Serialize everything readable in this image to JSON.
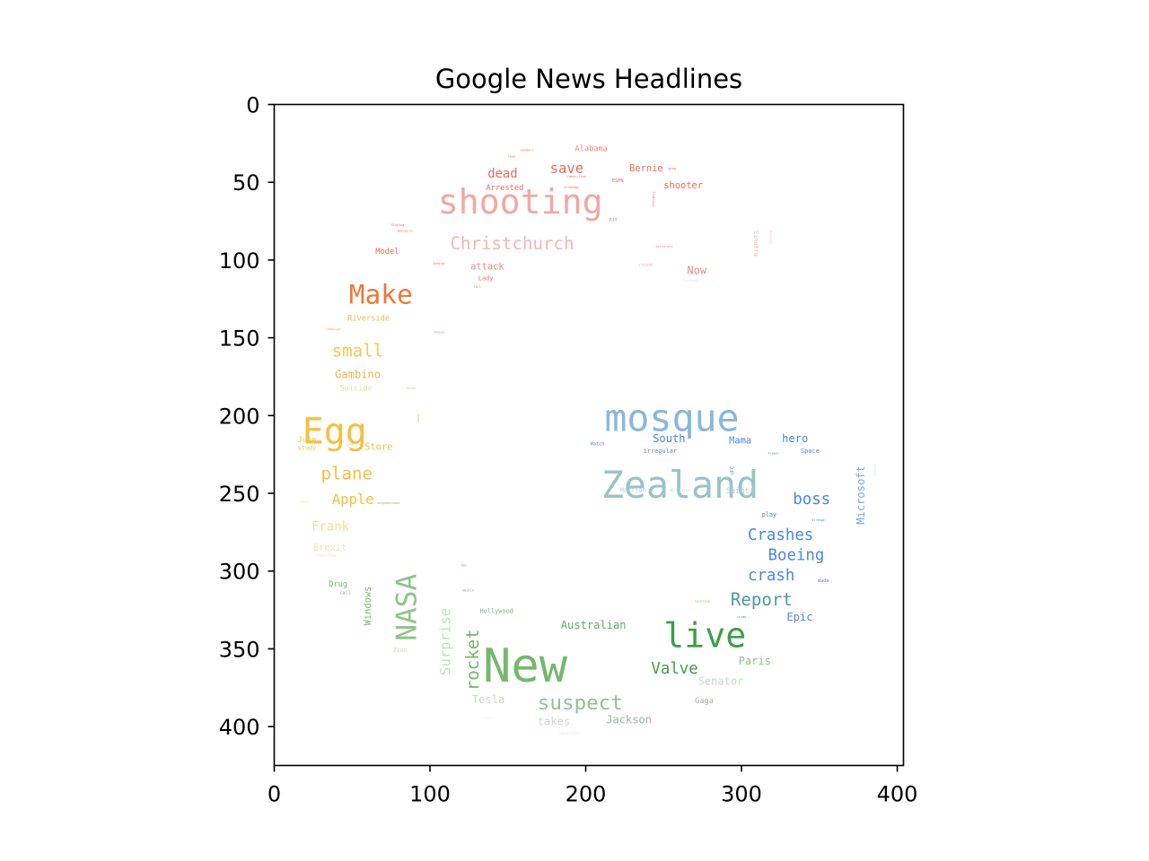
{
  "chart_data": {
    "type": "wordcloud",
    "title": "Google News Headlines",
    "xlabel": "",
    "ylabel": "",
    "x_range": [
      0,
      404
    ],
    "y_range": [
      0,
      425
    ],
    "y_inverted": true,
    "x_ticks": [
      0,
      100,
      200,
      300,
      400
    ],
    "y_ticks": [
      0,
      50,
      100,
      150,
      200,
      250,
      300,
      350,
      400
    ],
    "grid": false,
    "words": [
      {
        "text": "shooting",
        "x": 105,
        "y": 70,
        "size": 22,
        "color": "#f4a7a2",
        "rotate": 0
      },
      {
        "text": "Christchurch",
        "x": 113,
        "y": 93,
        "size": 11,
        "color": "#f7b4ae",
        "rotate": 0
      },
      {
        "text": "save",
        "x": 177,
        "y": 44,
        "size": 9,
        "color": "#ef6a5a",
        "rotate": 0
      },
      {
        "text": "dead",
        "x": 137,
        "y": 47,
        "size": 8,
        "color": "#ef6a5a",
        "rotate": 0
      },
      {
        "text": "Alabama",
        "x": 193,
        "y": 30,
        "size": 5,
        "color": "#f2857a",
        "rotate": 0
      },
      {
        "text": "Bernie",
        "x": 228,
        "y": 43,
        "size": 6,
        "color": "#ef6a5a",
        "rotate": 0
      },
      {
        "text": "shooter",
        "x": 250,
        "y": 54,
        "size": 6,
        "color": "#ef6a5a",
        "rotate": 0
      },
      {
        "text": "Arrested",
        "x": 136,
        "y": 55,
        "size": 5,
        "color": "#ef6a5a",
        "rotate": 0
      },
      {
        "text": "ESPN",
        "x": 217,
        "y": 50,
        "size": 3,
        "color": "#ef6a5a",
        "rotate": 0
      },
      {
        "text": "Identified",
        "x": 188,
        "y": 47,
        "size": 2,
        "color": "#ef6a5a",
        "rotate": 0
      },
      {
        "text": "Strategy",
        "x": 186,
        "y": 54,
        "size": 2,
        "color": "#ef6a5a",
        "rotate": 0
      },
      {
        "text": "NYPD",
        "x": 253,
        "y": 42,
        "size": 2,
        "color": "#ef6a5a",
        "rotate": 0
      },
      {
        "text": "Sanders",
        "x": 158,
        "y": 30,
        "size": 2,
        "color": "#ef6a5a",
        "rotate": 0
      },
      {
        "text": "teen",
        "x": 150,
        "y": 34,
        "size": 2,
        "color": "#ef6a5a",
        "rotate": 0
      },
      {
        "text": "Training",
        "x": 243,
        "y": 56,
        "size": 2,
        "color": "#ef6a5a",
        "rotate": 90
      },
      {
        "text": "hit",
        "x": 215,
        "y": 75,
        "size": 3,
        "color": "#ef6a5a",
        "rotate": 0
      },
      {
        "text": "Slaying",
        "x": 75,
        "y": 78,
        "size": 2,
        "color": "#ef6a5a",
        "rotate": 0
      },
      {
        "text": "massacre",
        "x": 79,
        "y": 82,
        "size": 2,
        "color": "#ef6a5a",
        "rotate": 0
      },
      {
        "text": "Model",
        "x": 65,
        "y": 96,
        "size": 5,
        "color": "#ef6a5a",
        "rotate": 0
      },
      {
        "text": "attack",
        "x": 126,
        "y": 106,
        "size": 6,
        "color": "#f08a7d",
        "rotate": 0
      },
      {
        "text": "Lady",
        "x": 131,
        "y": 113,
        "size": 4,
        "color": "#ef6a5a",
        "rotate": 0
      },
      {
        "text": "Anning",
        "x": 102,
        "y": 103,
        "size": 2,
        "color": "#ef6a5a",
        "rotate": 0
      },
      {
        "text": "Toll",
        "x": 128,
        "y": 118,
        "size": 2,
        "color": "#ef6a5a",
        "rotate": 0
      },
      {
        "text": "Different",
        "x": 245,
        "y": 92,
        "size": 2,
        "color": "#f2857a",
        "rotate": 0
      },
      {
        "text": "round",
        "x": 234,
        "y": 104,
        "size": 3,
        "color": "#f7b4ae",
        "rotate": 0
      },
      {
        "text": "Now",
        "x": 265,
        "y": 109,
        "size": 7,
        "color": "#f08a7d",
        "rotate": 0
      },
      {
        "text": "Sinatra",
        "x": 308,
        "y": 81,
        "size": 4,
        "color": "#f7b4ae",
        "rotate": 90
      },
      {
        "text": "Ireland",
        "x": 318,
        "y": 81,
        "size": 2,
        "color": "#f7b4ae",
        "rotate": 90
      },
      {
        "text": "Election",
        "x": 262,
        "y": 114,
        "size": 2,
        "color": "#fcd3cf",
        "rotate": 0
      },
      {
        "text": "Make",
        "x": 48,
        "y": 128,
        "size": 17,
        "color": "#ee7838",
        "rotate": 0
      },
      {
        "text": "Riverside",
        "x": 47,
        "y": 139,
        "size": 5,
        "color": "#f0b44e",
        "rotate": 0
      },
      {
        "text": "Campaign",
        "x": 33,
        "y": 145,
        "size": 2,
        "color": "#f0b44e",
        "rotate": 0
      },
      {
        "text": "Focus",
        "x": 103,
        "y": 147,
        "size": 2,
        "color": "#ef6a5a",
        "rotate": 0
      },
      {
        "text": "small",
        "x": 37,
        "y": 162,
        "size": 11,
        "color": "#f5c658",
        "rotate": 0
      },
      {
        "text": "Gambino",
        "x": 39,
        "y": 176,
        "size": 7,
        "color": "#f1b34d",
        "rotate": 0
      },
      {
        "text": "Suicide",
        "x": 42,
        "y": 184,
        "size": 5,
        "color": "#f8d98f",
        "rotate": 0
      },
      {
        "text": "Helps",
        "x": 85,
        "y": 183,
        "size": 2,
        "color": "#f0b44e",
        "rotate": 0
      },
      {
        "text": "Egg",
        "x": 18,
        "y": 218,
        "size": 23,
        "color": "#f4c040",
        "rotate": 0
      },
      {
        "text": "Under",
        "x": 92,
        "y": 199,
        "size": 2,
        "color": "#f0b44e",
        "rotate": 90
      },
      {
        "text": "June",
        "x": 15,
        "y": 217,
        "size": 5,
        "color": "#f4c040",
        "rotate": 0
      },
      {
        "text": "study",
        "x": 15,
        "y": 222,
        "size": 4,
        "color": "#f4c040",
        "rotate": 0
      },
      {
        "text": "Line",
        "x": 46,
        "y": 219,
        "size": 2,
        "color": "#f0b44e",
        "rotate": 0
      },
      {
        "text": "Store",
        "x": 58,
        "y": 222,
        "size": 6,
        "color": "#f4c040",
        "rotate": 0
      },
      {
        "text": "plane",
        "x": 30,
        "y": 241,
        "size": 11,
        "color": "#f4c040",
        "rotate": 0
      },
      {
        "text": "Apple",
        "x": 37,
        "y": 257,
        "size": 9,
        "color": "#f4c040",
        "rotate": 0
      },
      {
        "text": "Frank",
        "x": 24,
        "y": 274,
        "size": 8,
        "color": "#f8d98f",
        "rotate": 0
      },
      {
        "text": "Pilot",
        "x": 17,
        "y": 256,
        "size": 2,
        "color": "#f8d98f",
        "rotate": 0
      },
      {
        "text": "neighborhood",
        "x": 66,
        "y": 257,
        "size": 2,
        "color": "#8cbf6c",
        "rotate": 0
      },
      {
        "text": "Brexit",
        "x": 25,
        "y": 287,
        "size": 6,
        "color": "#f8e2b8",
        "rotate": 0
      },
      {
        "text": "results",
        "x": 27,
        "y": 291,
        "size": 3,
        "color": "#f8e2b8",
        "rotate": 0
      },
      {
        "text": "Drug",
        "x": 35,
        "y": 310,
        "size": 5,
        "color": "#74b86c",
        "rotate": 0
      },
      {
        "text": "call",
        "x": 42,
        "y": 315,
        "size": 3,
        "color": "#74b86c",
        "rotate": 0
      },
      {
        "text": "Windows",
        "x": 62,
        "y": 335,
        "size": 6,
        "color": "#74b86c",
        "rotate": -90
      },
      {
        "text": "NASA",
        "x": 91,
        "y": 345,
        "size": 18,
        "color": "#8fc48a",
        "rotate": -90
      },
      {
        "text": "Surprise",
        "x": 113,
        "y": 367,
        "size": 9,
        "color": "#c2e0c2",
        "rotate": -90
      },
      {
        "text": "Zion",
        "x": 76,
        "y": 352,
        "size": 4,
        "color": "#c2e0c2",
        "rotate": 0
      },
      {
        "text": "Way",
        "x": 120,
        "y": 297,
        "size": 2,
        "color": "#74b86c",
        "rotate": 0
      },
      {
        "text": "Wealth",
        "x": 121,
        "y": 313,
        "size": 2,
        "color": "#74b86c",
        "rotate": 0
      },
      {
        "text": "rocket",
        "x": 131,
        "y": 377,
        "size": 11,
        "color": "#74b86c",
        "rotate": -90
      },
      {
        "text": "Hollywood",
        "x": 132,
        "y": 327,
        "size": 4,
        "color": "#74b86c",
        "rotate": 0
      },
      {
        "text": "New",
        "x": 134,
        "y": 371,
        "size": 30,
        "color": "#74b86c",
        "rotate": 0
      },
      {
        "text": "Australian",
        "x": 184,
        "y": 337,
        "size": 7,
        "color": "#5fad5f",
        "rotate": 0
      },
      {
        "text": "live",
        "x": 250,
        "y": 349,
        "size": 22,
        "color": "#3f9e48",
        "rotate": 0
      },
      {
        "text": "Valve",
        "x": 242,
        "y": 366,
        "size": 10,
        "color": "#3f9e48",
        "rotate": 0
      },
      {
        "text": "Paris",
        "x": 298,
        "y": 360,
        "size": 7,
        "color": "#8fc48a",
        "rotate": 0
      },
      {
        "text": "Senator",
        "x": 272,
        "y": 373,
        "size": 7,
        "color": "#c2e0c2",
        "rotate": 0
      },
      {
        "text": "Gaga",
        "x": 270,
        "y": 385,
        "size": 5,
        "color": "#8fc48a",
        "rotate": 0
      },
      {
        "text": "suspect",
        "x": 169,
        "y": 389,
        "size": 13,
        "color": "#8fc48a",
        "rotate": 0
      },
      {
        "text": "Tesla",
        "x": 127,
        "y": 385,
        "size": 7,
        "color": "#c2e0c2",
        "rotate": 0
      },
      {
        "text": "takes",
        "x": 169,
        "y": 399,
        "size": 7,
        "color": "#c2e0c2",
        "rotate": 0
      },
      {
        "text": "Jackson",
        "x": 213,
        "y": 398,
        "size": 7,
        "color": "#8fc48a",
        "rotate": 0
      },
      {
        "text": "Crisis",
        "x": 134,
        "y": 395,
        "size": 2,
        "color": "#e4f1e4",
        "rotate": 0
      },
      {
        "text": "launches",
        "x": 182,
        "y": 405,
        "size": 3,
        "color": "#e4f1e4",
        "rotate": 0
      },
      {
        "text": "mosque",
        "x": 212,
        "y": 210,
        "size": 24,
        "color": "#89b7df",
        "rotate": 0
      },
      {
        "text": "Zealand",
        "x": 210,
        "y": 253,
        "size": 24,
        "color": "#97c5c3",
        "rotate": 0
      },
      {
        "text": "South",
        "x": 243,
        "y": 217,
        "size": 7,
        "color": "#4b86e5",
        "rotate": 0
      },
      {
        "text": "irregular",
        "x": 237,
        "y": 224,
        "size": 4,
        "color": "#4b86e5",
        "rotate": 0
      },
      {
        "text": "Watch",
        "x": 203,
        "y": 219,
        "size": 3,
        "color": "#4b86e5",
        "rotate": 0
      },
      {
        "text": "Mama",
        "x": 292,
        "y": 218,
        "size": 6,
        "color": "#4b86e5",
        "rotate": 0
      },
      {
        "text": "hero",
        "x": 326,
        "y": 217,
        "size": 7,
        "color": "#4b86e5",
        "rotate": 0
      },
      {
        "text": "Fraser",
        "x": 317,
        "y": 225,
        "size": 2,
        "color": "#4b86e5",
        "rotate": 0
      },
      {
        "text": "Space",
        "x": 338,
        "y": 224,
        "size": 4,
        "color": "#4b86e5",
        "rotate": 0
      },
      {
        "text": "UFC",
        "x": 295,
        "y": 238,
        "size": 3,
        "color": "#4b86e5",
        "rotate": -90
      },
      {
        "text": "Microsoft",
        "x": 379,
        "y": 270,
        "size": 7,
        "color": "#7aa6e8",
        "rotate": -90
      },
      {
        "text": "Island",
        "x": 385,
        "y": 231,
        "size": 2,
        "color": "#c6daf7",
        "rotate": 90
      },
      {
        "text": "Martian",
        "x": 222,
        "y": 249,
        "size": 4,
        "color": "#b2c8ec",
        "rotate": 0
      },
      {
        "text": "Million",
        "x": 254,
        "y": 249,
        "size": 3,
        "color": "#c6daf7",
        "rotate": 0
      },
      {
        "text": "Saints",
        "x": 290,
        "y": 250,
        "size": 5,
        "color": "#b2c8ec",
        "rotate": 0
      },
      {
        "text": "boss",
        "x": 333,
        "y": 257,
        "size": 10,
        "color": "#4b86e5",
        "rotate": 0
      },
      {
        "text": "play",
        "x": 313,
        "y": 265,
        "size": 4,
        "color": "#4b86e5",
        "rotate": 0
      },
      {
        "text": "Strange",
        "x": 345,
        "y": 268,
        "size": 2,
        "color": "#4b86e5",
        "rotate": 0
      },
      {
        "text": "Crashes",
        "x": 304,
        "y": 280,
        "size": 10,
        "color": "#4b86e5",
        "rotate": 0
      },
      {
        "text": "Boeing",
        "x": 317,
        "y": 293,
        "size": 10,
        "color": "#4b86e5",
        "rotate": 0
      },
      {
        "text": "crash",
        "x": 304,
        "y": 306,
        "size": 10,
        "color": "#4b86e5",
        "rotate": 0
      },
      {
        "text": "made",
        "x": 349,
        "y": 307,
        "size": 3,
        "color": "#4b86e5",
        "rotate": 0
      },
      {
        "text": "Carolina",
        "x": 270,
        "y": 320,
        "size": 2,
        "color": "#74b86c",
        "rotate": 0
      },
      {
        "text": "Report",
        "x": 293,
        "y": 322,
        "size": 11,
        "color": "#4a9aa0",
        "rotate": 0
      },
      {
        "text": "crime",
        "x": 297,
        "y": 330,
        "size": 2,
        "color": "#4b86e5",
        "rotate": 0
      },
      {
        "text": "Epic",
        "x": 329,
        "y": 332,
        "size": 7,
        "color": "#4b86e5",
        "rotate": 0
      }
    ]
  }
}
